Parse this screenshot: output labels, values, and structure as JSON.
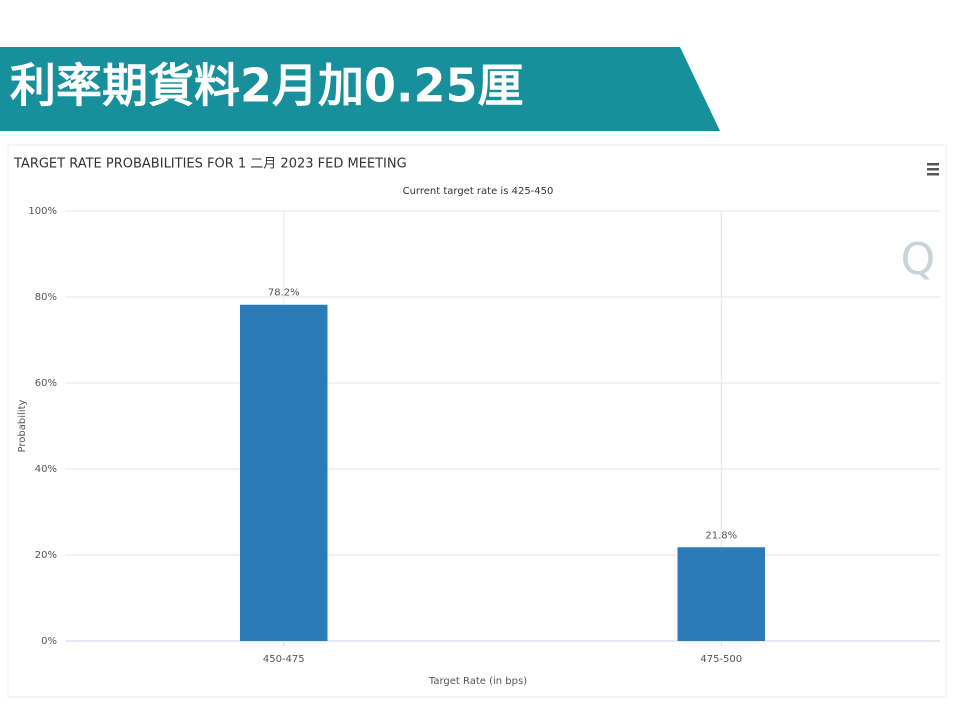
{
  "banner": {
    "title": "利率期貨料2月加0.25厘"
  },
  "logo": "Q",
  "chart_data": {
    "type": "bar",
    "title": "TARGET RATE PROBABILITIES FOR 1 二月 2023 FED MEETING",
    "subtitle": "Current target rate is 425-450",
    "x_label": "Target Rate (in bps)",
    "y_label": "Probability",
    "categories": [
      "450-475",
      "475-500"
    ],
    "values": [
      78.2,
      21.8
    ],
    "value_labels": [
      "78.2%",
      "21.8%"
    ],
    "color": "#2b7bb9",
    "ylim": [
      0,
      100
    ],
    "yticks": [
      {
        "value": 0,
        "label": "0%"
      },
      {
        "value": 20,
        "label": "20%"
      },
      {
        "value": 40,
        "label": "40%"
      },
      {
        "value": 60,
        "label": "60%"
      },
      {
        "value": 80,
        "label": "80%"
      },
      {
        "value": 100,
        "label": "100%"
      }
    ],
    "grid": true
  }
}
